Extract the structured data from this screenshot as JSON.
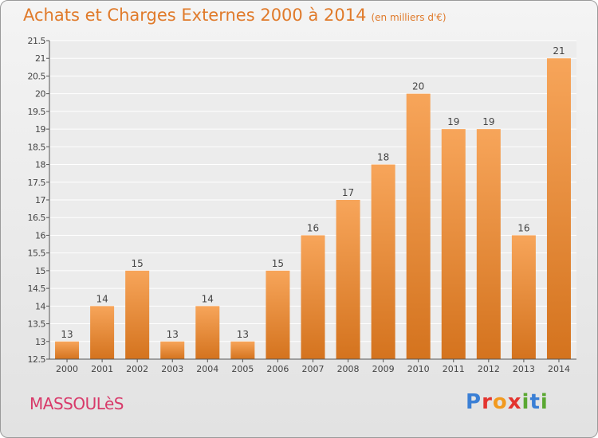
{
  "header": {
    "title": "Achats et Charges Externes 2000 à 2014",
    "subtitle": "(en milliers d'€)"
  },
  "footer": {
    "commune": "MASSOULèS",
    "logo": "Proxiti"
  },
  "colors": {
    "bar_light": "#f7a55a",
    "bar_dark": "#d4731e",
    "title": "#e07a2a",
    "commune": "#d83a6a",
    "logo_letters": [
      "#3a7fd5",
      "#e3342f",
      "#f29a1f",
      "#e3342f",
      "#5aa832",
      "#3a7fd5",
      "#5aa832"
    ]
  },
  "chart_data": {
    "type": "bar",
    "title": "Achats et Charges Externes 2000 à 2014",
    "xlabel": "",
    "ylabel": "",
    "categories": [
      "2000",
      "2001",
      "2002",
      "2003",
      "2004",
      "2005",
      "2006",
      "2007",
      "2008",
      "2009",
      "2010",
      "2011",
      "2012",
      "2013",
      "2014"
    ],
    "values": [
      13,
      14,
      15,
      13,
      14,
      13,
      15,
      16,
      17,
      18,
      20,
      19,
      19,
      16,
      21
    ],
    "labels": [
      "13",
      "14",
      "15",
      "13",
      "14",
      "13",
      "15",
      "16",
      "17",
      "18",
      "20",
      "19",
      "19",
      "16",
      "21"
    ],
    "ylim": [
      12.5,
      21.5
    ],
    "yticks": [
      12.5,
      13,
      13.5,
      14,
      14.5,
      15,
      15.5,
      16,
      16.5,
      17,
      17.5,
      18,
      18.5,
      19,
      19.5,
      20,
      20.5,
      21,
      21.5
    ],
    "ytick_labels": [
      "12.5",
      "13",
      "13.5",
      "14",
      "14.5",
      "15",
      "15.5",
      "16",
      "16.5",
      "17",
      "17.5",
      "18",
      "18.5",
      "19",
      "19.5",
      "20",
      "20.5",
      "21",
      "21.5"
    ],
    "grid": true
  }
}
